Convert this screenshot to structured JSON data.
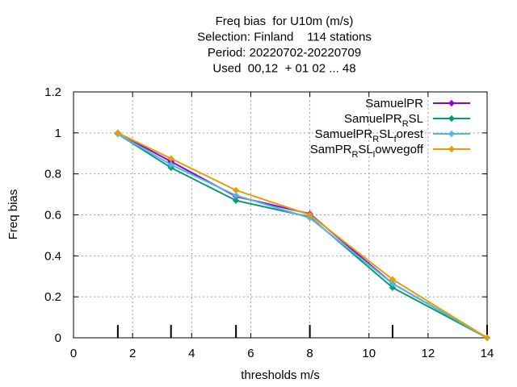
{
  "chart_data": {
    "type": "line",
    "title_lines": [
      "Freq bias  for U10m (m/s)",
      "Selection: Finland    114 stations",
      "Period: 20220702-20220709",
      "Used  00,12  + 01 02 ... 48"
    ],
    "xlabel": "thresholds m/s",
    "ylabel": "Freq bias",
    "xlim": [
      0,
      14
    ],
    "ylim": [
      0,
      1.2
    ],
    "x_ticks": [
      "0",
      "2",
      "4",
      "6",
      "8",
      "10",
      "12",
      "14"
    ],
    "y_ticks": [
      "0",
      "0.2",
      "0.4",
      "0.6",
      "0.8",
      "1",
      "1.2"
    ],
    "grid": true,
    "legend_position": "top-right",
    "threshold_markers": [
      1.5,
      3.3,
      5.5,
      8,
      10.8,
      14
    ],
    "series": [
      {
        "name": "SamuelPR",
        "legend": {
          "base": "SamuelPR"
        },
        "color": "#9400d3",
        "x": [
          1.5,
          3.3,
          5.5,
          8,
          10.8,
          14
        ],
        "y": [
          1.0,
          0.86,
          0.69,
          0.605,
          0.265,
          0.0
        ]
      },
      {
        "name": "SamuelPR_RSL",
        "legend": {
          "base": "SamuelPR",
          "sub": "R",
          "tail": "SL"
        },
        "color": "#009e73",
        "x": [
          1.5,
          3.3,
          5.5,
          8,
          10.8,
          14
        ],
        "y": [
          0.995,
          0.83,
          0.67,
          0.59,
          0.245,
          0.0
        ]
      },
      {
        "name": "SamuelPR_RSL_forest",
        "legend": {
          "base": "SamuelPR",
          "sub": "R",
          "tail": "SL",
          "sub2": "f",
          "tail2": "orest"
        },
        "color": "#56b4e9",
        "x": [
          1.5,
          3.3,
          5.5,
          8,
          10.8,
          14
        ],
        "y": [
          0.995,
          0.845,
          0.695,
          0.585,
          0.265,
          0.0
        ]
      },
      {
        "name": "SamPR_RSL_lowvegoff",
        "legend": {
          "base": "SamPR",
          "sub": "R",
          "tail": "SL",
          "sub2": "l",
          "tail2": "owvegoff"
        },
        "color": "#e69f00",
        "x": [
          1.5,
          3.3,
          5.5,
          8,
          10.8,
          14
        ],
        "y": [
          1.0,
          0.875,
          0.72,
          0.6,
          0.285,
          0.0
        ]
      }
    ]
  }
}
